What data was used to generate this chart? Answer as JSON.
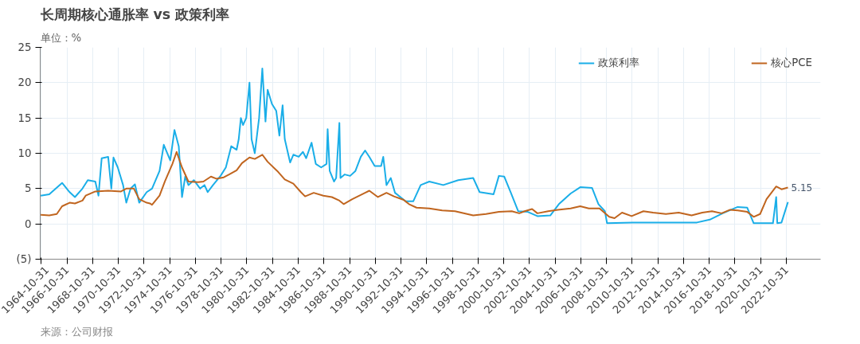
{
  "chart_data": {
    "type": "line",
    "title": "长周期核心通胀率 vs 政策利率",
    "ylabel": "单位：%",
    "legend": "top",
    "grid": true,
    "line_style": "solid",
    "ylim": [
      -5,
      25
    ],
    "yticks": [
      {
        "value": -5,
        "label": "(5)"
      },
      0,
      5,
      10,
      15,
      20,
      25
    ],
    "xlim": [
      "1964-10-01",
      "2025-06-30"
    ],
    "xticks": [
      "1964-10-31",
      "1966-10-31",
      "1968-10-31",
      "1970-10-31",
      "1972-10-31",
      "1974-10-31",
      "1976-10-31",
      "1978-10-31",
      "1980-10-31",
      "1982-10-31",
      "1984-10-31",
      "1986-10-31",
      "1988-10-31",
      "1990-10-31",
      "1992-10-31",
      "1994-10-31",
      "1996-10-31",
      "1998-10-31",
      "2000-10-31",
      "2002-10-31",
      "2004-10-31",
      "2006-10-31",
      "2008-10-31",
      "2010-10-31",
      "2012-10-31",
      "2014-10-31",
      "2016-10-31",
      "2018-10-31",
      "2020-10-31",
      "2022-10-31"
    ],
    "series": [
      {
        "name": "政策利率",
        "color": "#1aaee8",
        "x": [
          "1964-10",
          "1965-06",
          "1966-06",
          "1967-01",
          "1967-06",
          "1968-01",
          "1968-06",
          "1969-01",
          "1969-04",
          "1969-07",
          "1970-01",
          "1970-04",
          "1970-06",
          "1970-10",
          "1971-03",
          "1971-06",
          "1971-10",
          "1972-02",
          "1972-06",
          "1973-01",
          "1973-06",
          "1974-01",
          "1974-05",
          "1974-11",
          "1975-03",
          "1975-07",
          "1975-10",
          "1976-01",
          "1976-04",
          "1976-09",
          "1977-03",
          "1977-07",
          "1977-10",
          "1978-03",
          "1978-10",
          "1979-03",
          "1979-08",
          "1980-01",
          "1980-03",
          "1980-05",
          "1980-07",
          "1980-10",
          "1981-01",
          "1981-03",
          "1981-06",
          "1981-10",
          "1982-01",
          "1982-04",
          "1982-06",
          "1982-10",
          "1983-02",
          "1983-05",
          "1983-08",
          "1983-10",
          "1984-01",
          "1984-03",
          "1984-06",
          "1984-11",
          "1985-03",
          "1985-06",
          "1985-11",
          "1986-03",
          "1986-08",
          "1987-01",
          "1987-02",
          "1987-04",
          "1987-08",
          "1987-10",
          "1988-01",
          "1988-02",
          "1988-06",
          "1988-11",
          "1989-04",
          "1989-09",
          "1990-01",
          "1990-05",
          "1990-10",
          "1991-04",
          "1991-06",
          "1991-09",
          "1992-01",
          "1992-05",
          "1992-10",
          "1993-03",
          "1993-10",
          "1994-05",
          "1995-01",
          "1996-02",
          "1997-04",
          "1998-06",
          "1998-12",
          "2000-01",
          "2000-06",
          "2000-11",
          "2001-05",
          "2001-12",
          "2002-09",
          "2003-06",
          "2004-06",
          "2005-02",
          "2006-01",
          "2006-10",
          "2007-09",
          "2008-03",
          "2008-09",
          "2008-11",
          "2010-11",
          "2015-11",
          "2016-11",
          "2017-11",
          "2019-01",
          "2019-10",
          "2020-04",
          "2021-10",
          "2022-01",
          "2022-02",
          "2022-06",
          "2022-12"
        ],
        "values": [
          4.0,
          4.2,
          5.8,
          4.5,
          3.8,
          5.0,
          6.2,
          6.0,
          4.0,
          9.3,
          9.5,
          5.0,
          9.4,
          8.0,
          5.5,
          3.0,
          5.0,
          5.6,
          3.0,
          4.5,
          5.0,
          7.5,
          11.2,
          9.0,
          13.3,
          11.0,
          3.8,
          6.7,
          5.5,
          6.2,
          5.0,
          5.5,
          4.5,
          5.5,
          6.8,
          8.0,
          11.0,
          10.5,
          12.0,
          15.0,
          14.0,
          15.0,
          20.0,
          12.0,
          10.0,
          15.0,
          22.0,
          14.5,
          19.0,
          17.0,
          16.0,
          12.5,
          16.8,
          12.0,
          10.0,
          8.7,
          9.8,
          9.5,
          10.2,
          9.3,
          11.5,
          8.5,
          8.0,
          8.5,
          13.4,
          7.5,
          6.0,
          6.5,
          14.3,
          6.5,
          7.0,
          6.8,
          7.5,
          9.5,
          10.4,
          9.5,
          8.2,
          8.2,
          9.5,
          5.5,
          6.5,
          4.4,
          3.8,
          3.2,
          3.2,
          5.5,
          6.0,
          5.5,
          6.2,
          6.5,
          4.5,
          4.2,
          6.8,
          6.7,
          4.5,
          1.8,
          1.7,
          1.1,
          1.2,
          2.8,
          4.3,
          5.2,
          5.1,
          2.8,
          1.8,
          0.1,
          0.2,
          0.2,
          0.6,
          1.5,
          2.4,
          2.3,
          0.1,
          0.1,
          3.8,
          0.1,
          0.2,
          3.1
        ]
      },
      {
        "name": "核心PCE",
        "color": "#c0651f",
        "x": [
          "1964-10",
          "1965-06",
          "1966-01",
          "1966-06",
          "1967-01",
          "1967-06",
          "1968-01",
          "1968-04",
          "1969-01",
          "1970-01",
          "1971-01",
          "1971-06",
          "1972-01",
          "1972-06",
          "1973-01",
          "1973-04",
          "1973-06",
          "1974-01",
          "1974-06",
          "1975-01",
          "1975-05",
          "1975-10",
          "1976-04",
          "1977-01",
          "1977-06",
          "1978-01",
          "1978-06",
          "1979-01",
          "1979-06",
          "1980-01",
          "1980-06",
          "1981-01",
          "1981-06",
          "1982-01",
          "1982-06",
          "1983-03",
          "1983-10",
          "1984-06",
          "1985-01",
          "1985-05",
          "1986-01",
          "1986-10",
          "1987-06",
          "1988-01",
          "1988-05",
          "1989-01",
          "1990-01",
          "1990-05",
          "1991-01",
          "1991-09",
          "1992-04",
          "1993-01",
          "1993-06",
          "1994-01",
          "1995-01",
          "1996-01",
          "1997-01",
          "1998-06",
          "1999-06",
          "2000-06",
          "2001-06",
          "2002-01",
          "2002-06",
          "2003-01",
          "2003-06",
          "2004-04",
          "2005-01",
          "2006-01",
          "2006-10",
          "2007-06",
          "2008-04",
          "2009-01",
          "2009-06",
          "2010-01",
          "2010-10",
          "2011-09",
          "2012-06",
          "2013-06",
          "2014-06",
          "2015-06",
          "2016-04",
          "2017-01",
          "2017-10",
          "2018-06",
          "2019-01",
          "2019-10",
          "2020-04",
          "2020-10",
          "2021-04",
          "2022-01",
          "2022-06",
          "2022-12"
        ],
        "values": [
          1.3,
          1.2,
          1.4,
          2.5,
          3.0,
          2.9,
          3.3,
          4.0,
          4.6,
          4.7,
          4.6,
          5.0,
          5.0,
          3.5,
          3.0,
          2.9,
          2.7,
          4.0,
          6.0,
          8.5,
          10.2,
          8.0,
          6.0,
          5.9,
          6.0,
          6.7,
          6.4,
          6.6,
          7.0,
          7.6,
          8.6,
          9.4,
          9.2,
          9.8,
          8.8,
          7.5,
          6.3,
          5.7,
          4.5,
          3.9,
          4.4,
          4.0,
          3.8,
          3.3,
          2.8,
          3.5,
          4.4,
          4.7,
          3.8,
          4.4,
          3.9,
          3.4,
          2.8,
          2.3,
          2.2,
          1.9,
          1.8,
          1.2,
          1.4,
          1.7,
          1.8,
          1.5,
          1.8,
          2.1,
          1.5,
          1.8,
          2.0,
          2.2,
          2.5,
          2.2,
          2.2,
          1.0,
          0.8,
          1.6,
          1.1,
          1.8,
          1.6,
          1.4,
          1.6,
          1.2,
          1.6,
          1.8,
          1.5,
          2.0,
          1.9,
          1.7,
          1.0,
          1.4,
          3.5,
          5.3,
          4.9,
          5.15
        ]
      }
    ],
    "annotations": [
      {
        "text": "5.15",
        "x": "2022-12",
        "y": 5.15
      },
      "来源：公司财报"
    ]
  }
}
